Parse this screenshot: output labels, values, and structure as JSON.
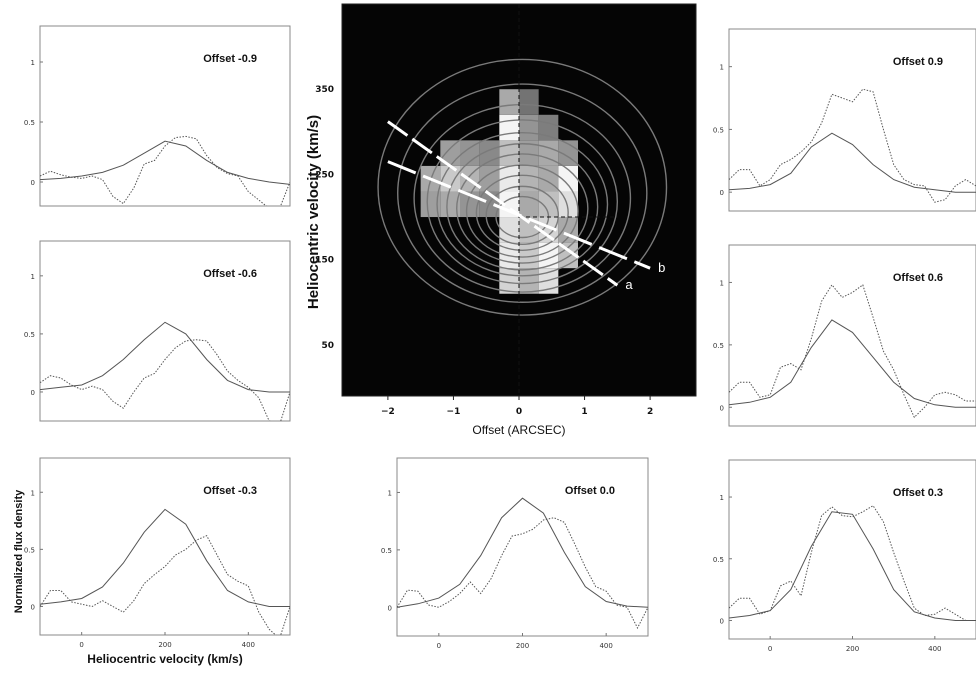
{
  "colors": {
    "panel_frame": "#888888",
    "line": "#555555",
    "map_background": "#050505",
    "overlay": "#ffffff"
  },
  "chart_data": [
    {
      "type": "heatmap",
      "xlabel": "Offset  (ARCSEC)",
      "ylabel": "Heliocentric velocity (km/s)",
      "xlim": [
        -2.7,
        2.7
      ],
      "ylim": [
        450,
        -10
      ],
      "x_ticks": [
        -2,
        -1,
        0,
        1,
        2
      ],
      "y_ticks": [
        50,
        150,
        250,
        350
      ],
      "x_tick_labels": [
        "−2",
        "−1",
        "0",
        "1",
        "2"
      ],
      "y_tick_labels": [
        "50",
        "150",
        "250",
        "350"
      ],
      "cells": [
        {
          "x": -0.15,
          "y": 125,
          "v": 0.8
        },
        {
          "x": 0.15,
          "y": 125,
          "v": 0.65
        },
        {
          "x": 0.45,
          "y": 125,
          "v": 0.85
        },
        {
          "x": -0.15,
          "y": 155,
          "v": 0.9
        },
        {
          "x": 0.15,
          "y": 155,
          "v": 0.75
        },
        {
          "x": 0.45,
          "y": 155,
          "v": 0.95
        },
        {
          "x": 0.75,
          "y": 155,
          "v": 0.7
        },
        {
          "x": -0.15,
          "y": 185,
          "v": 0.85
        },
        {
          "x": 0.15,
          "y": 185,
          "v": 0.7
        },
        {
          "x": 0.45,
          "y": 185,
          "v": 0.8
        },
        {
          "x": 0.75,
          "y": 185,
          "v": 0.6
        },
        {
          "x": -1.35,
          "y": 215,
          "v": 0.55
        },
        {
          "x": -1.05,
          "y": 215,
          "v": 0.6
        },
        {
          "x": -0.75,
          "y": 215,
          "v": 0.5
        },
        {
          "x": -0.45,
          "y": 215,
          "v": 0.45
        },
        {
          "x": -0.15,
          "y": 215,
          "v": 0.95
        },
        {
          "x": 0.15,
          "y": 215,
          "v": 0.6
        },
        {
          "x": 0.45,
          "y": 215,
          "v": 0.7
        },
        {
          "x": 0.75,
          "y": 215,
          "v": 0.85
        },
        {
          "x": -1.35,
          "y": 245,
          "v": 0.6
        },
        {
          "x": -1.05,
          "y": 245,
          "v": 0.75
        },
        {
          "x": -0.75,
          "y": 245,
          "v": 0.65
        },
        {
          "x": -0.45,
          "y": 245,
          "v": 0.55
        },
        {
          "x": -0.15,
          "y": 245,
          "v": 0.9
        },
        {
          "x": 0.15,
          "y": 245,
          "v": 0.65
        },
        {
          "x": 0.45,
          "y": 245,
          "v": 0.6
        },
        {
          "x": 0.75,
          "y": 245,
          "v": 0.95
        },
        {
          "x": -1.05,
          "y": 275,
          "v": 0.55
        },
        {
          "x": -0.75,
          "y": 275,
          "v": 0.5
        },
        {
          "x": -0.45,
          "y": 275,
          "v": 0.45
        },
        {
          "x": -0.15,
          "y": 275,
          "v": 0.7
        },
        {
          "x": 0.15,
          "y": 275,
          "v": 0.55
        },
        {
          "x": 0.45,
          "y": 275,
          "v": 0.6
        },
        {
          "x": 0.75,
          "y": 275,
          "v": 0.5
        },
        {
          "x": -0.15,
          "y": 305,
          "v": 0.95
        },
        {
          "x": 0.15,
          "y": 305,
          "v": 0.5
        },
        {
          "x": 0.45,
          "y": 305,
          "v": 0.4
        },
        {
          "x": -0.15,
          "y": 335,
          "v": 0.6
        },
        {
          "x": 0.15,
          "y": 335,
          "v": 0.35
        }
      ],
      "contours": [
        {
          "x0": 0.05,
          "y0": 235,
          "rx": 2.2,
          "ry": 150
        },
        {
          "x0": 0.05,
          "y0": 228,
          "rx": 1.9,
          "ry": 128
        },
        {
          "x0": 0.05,
          "y0": 222,
          "rx": 1.65,
          "ry": 110
        },
        {
          "x0": 0.05,
          "y0": 218,
          "rx": 1.45,
          "ry": 96
        },
        {
          "x0": 0.05,
          "y0": 215,
          "rx": 1.3,
          "ry": 84
        },
        {
          "x0": 0.05,
          "y0": 212,
          "rx": 1.15,
          "ry": 74
        },
        {
          "x0": 0.05,
          "y0": 210,
          "rx": 1.0,
          "ry": 64
        },
        {
          "x0": 0.05,
          "y0": 207,
          "rx": 0.85,
          "ry": 54
        },
        {
          "x0": 0.05,
          "y0": 205,
          "rx": 0.7,
          "ry": 44
        },
        {
          "x0": 0.05,
          "y0": 202,
          "rx": 0.55,
          "ry": 34
        },
        {
          "x0": 0.05,
          "y0": 200,
          "rx": 0.4,
          "ry": 24
        }
      ],
      "lines": [
        {
          "label": "a",
          "x": [
            -2.0,
            1.5
          ],
          "y": [
            312,
            120
          ]
        },
        {
          "label": "b",
          "x": [
            -2.0,
            2.0
          ],
          "y": [
            265,
            140
          ]
        }
      ]
    },
    {
      "type": "line",
      "title": "Offset -0.9",
      "xlabel": "",
      "ylabel": "",
      "xlim": [
        -100,
        500
      ],
      "ylim": [
        -0.2,
        1.3
      ],
      "x_ticks": [],
      "y_ticks": [
        0,
        0.5,
        1
      ],
      "y_tick_labels": [
        "0",
        "0.5",
        "1"
      ],
      "series": [
        {
          "style": "solid",
          "x": [
            -100,
            -50,
            0,
            50,
            100,
            150,
            200,
            250,
            300,
            350,
            400,
            450,
            500
          ],
          "y": [
            0.02,
            0.03,
            0.05,
            0.08,
            0.14,
            0.24,
            0.34,
            0.3,
            0.18,
            0.08,
            0.03,
            0.0,
            -0.02
          ]
        },
        {
          "style": "dotted",
          "x": [
            -100,
            -75,
            -50,
            -25,
            0,
            25,
            50,
            75,
            100,
            125,
            150,
            175,
            200,
            225,
            250,
            275,
            300,
            325,
            350,
            375,
            400,
            425,
            450,
            475,
            500
          ],
          "y": [
            0.05,
            0.09,
            0.06,
            0.04,
            0.03,
            0.05,
            0.02,
            -0.12,
            -0.18,
            -0.05,
            0.15,
            0.18,
            0.3,
            0.37,
            0.38,
            0.36,
            0.22,
            0.12,
            0.07,
            0.05,
            -0.08,
            -0.15,
            -0.22,
            -0.22,
            0.0
          ]
        }
      ]
    },
    {
      "type": "line",
      "title": "Offset -0.6",
      "xlabel": "",
      "ylabel": "",
      "xlim": [
        -100,
        500
      ],
      "ylim": [
        -0.25,
        1.3
      ],
      "x_ticks": [],
      "y_ticks": [
        0,
        0.5,
        1
      ],
      "y_tick_labels": [
        "0",
        "0.5",
        "1"
      ],
      "series": [
        {
          "style": "solid",
          "x": [
            -100,
            -50,
            0,
            50,
            100,
            150,
            200,
            250,
            300,
            350,
            400,
            450,
            500
          ],
          "y": [
            0.02,
            0.04,
            0.06,
            0.14,
            0.28,
            0.45,
            0.6,
            0.5,
            0.28,
            0.1,
            0.02,
            0.0,
            0.0
          ]
        },
        {
          "style": "dotted",
          "x": [
            -100,
            -75,
            -50,
            -25,
            0,
            25,
            50,
            75,
            100,
            125,
            150,
            175,
            200,
            225,
            250,
            275,
            300,
            325,
            350,
            375,
            400,
            425,
            450,
            475,
            500
          ],
          "y": [
            0.08,
            0.14,
            0.12,
            0.06,
            0.02,
            0.05,
            0.02,
            -0.08,
            -0.14,
            0.0,
            0.12,
            0.16,
            0.28,
            0.38,
            0.44,
            0.45,
            0.44,
            0.32,
            0.18,
            0.1,
            0.04,
            -0.05,
            -0.25,
            -0.28,
            0.0
          ]
        }
      ]
    },
    {
      "type": "line",
      "title": "Offset -0.3",
      "xlabel": "Heliocentric velocity (km/s)",
      "ylabel": "Normalized flux density",
      "xlim": [
        -100,
        500
      ],
      "ylim": [
        -0.25,
        1.3
      ],
      "x_ticks": [
        0,
        200,
        400
      ],
      "x_tick_labels": [
        "0",
        "200",
        "400"
      ],
      "y_ticks": [
        0,
        0.5,
        1
      ],
      "y_tick_labels": [
        "0",
        "0.5",
        "1"
      ],
      "series": [
        {
          "style": "solid",
          "x": [
            -100,
            -50,
            0,
            50,
            100,
            150,
            200,
            250,
            300,
            350,
            400,
            450,
            500
          ],
          "y": [
            0.02,
            0.04,
            0.07,
            0.17,
            0.38,
            0.65,
            0.85,
            0.72,
            0.4,
            0.14,
            0.04,
            0.0,
            0.0
          ]
        },
        {
          "style": "dotted",
          "x": [
            -100,
            -75,
            -50,
            -25,
            0,
            25,
            50,
            75,
            100,
            125,
            150,
            175,
            200,
            225,
            250,
            275,
            300,
            325,
            350,
            375,
            400,
            425,
            450,
            475,
            500
          ],
          "y": [
            0.0,
            0.14,
            0.14,
            0.04,
            0.02,
            0.0,
            0.05,
            0.0,
            -0.05,
            0.05,
            0.2,
            0.28,
            0.35,
            0.45,
            0.5,
            0.58,
            0.62,
            0.45,
            0.28,
            0.22,
            0.18,
            -0.05,
            -0.2,
            -0.28,
            0.0
          ]
        }
      ]
    },
    {
      "type": "line",
      "title": "Offset 0.0",
      "xlabel": "",
      "ylabel": "",
      "xlim": [
        -100,
        500
      ],
      "ylim": [
        -0.25,
        1.3
      ],
      "x_ticks": [
        0,
        200,
        400
      ],
      "x_tick_labels": [
        "0",
        "200",
        "400"
      ],
      "y_ticks": [
        0,
        0.5,
        1
      ],
      "y_tick_labels": [
        "0",
        "0.5",
        "1"
      ],
      "series": [
        {
          "style": "solid",
          "x": [
            -100,
            -50,
            0,
            50,
            100,
            150,
            200,
            250,
            300,
            350,
            400,
            450,
            500
          ],
          "y": [
            0.0,
            0.03,
            0.08,
            0.2,
            0.45,
            0.78,
            0.95,
            0.82,
            0.48,
            0.18,
            0.05,
            0.01,
            0.0
          ]
        },
        {
          "style": "dotted",
          "x": [
            -100,
            -75,
            -50,
            -25,
            0,
            25,
            50,
            75,
            100,
            125,
            150,
            175,
            200,
            225,
            250,
            275,
            300,
            325,
            350,
            375,
            400,
            425,
            450,
            475,
            500
          ],
          "y": [
            0.0,
            0.15,
            0.14,
            0.02,
            0.0,
            0.05,
            0.12,
            0.22,
            0.12,
            0.25,
            0.45,
            0.62,
            0.64,
            0.68,
            0.76,
            0.78,
            0.74,
            0.55,
            0.35,
            0.18,
            0.14,
            0.02,
            0.0,
            -0.18,
            0.0
          ]
        }
      ]
    },
    {
      "type": "line",
      "title": "Offset 0.9",
      "xlabel": "",
      "ylabel": "",
      "xlim": [
        -100,
        500
      ],
      "ylim": [
        -0.15,
        1.3
      ],
      "x_ticks": [],
      "y_ticks": [
        0,
        0.5,
        1
      ],
      "y_tick_labels": [
        "0",
        "0.5",
        "1"
      ],
      "series": [
        {
          "style": "solid",
          "x": [
            -100,
            -50,
            0,
            50,
            100,
            150,
            200,
            250,
            300,
            350,
            400,
            450,
            500
          ],
          "y": [
            0.02,
            0.03,
            0.06,
            0.15,
            0.36,
            0.47,
            0.38,
            0.22,
            0.1,
            0.04,
            0.02,
            0.0,
            0.0
          ]
        },
        {
          "style": "dotted",
          "x": [
            -100,
            -75,
            -50,
            -25,
            0,
            25,
            50,
            75,
            100,
            125,
            150,
            175,
            200,
            225,
            250,
            275,
            300,
            325,
            350,
            375,
            400,
            425,
            450,
            475,
            500
          ],
          "y": [
            0.1,
            0.18,
            0.18,
            0.05,
            0.1,
            0.22,
            0.26,
            0.32,
            0.4,
            0.55,
            0.78,
            0.75,
            0.72,
            0.82,
            0.8,
            0.5,
            0.22,
            0.1,
            0.06,
            0.05,
            -0.08,
            -0.06,
            0.05,
            0.1,
            0.05
          ]
        }
      ]
    },
    {
      "type": "line",
      "title": "Offset 0.6",
      "xlabel": "",
      "ylabel": "",
      "xlim": [
        -100,
        500
      ],
      "ylim": [
        -0.15,
        1.3
      ],
      "x_ticks": [],
      "y_ticks": [
        0,
        0.5,
        1
      ],
      "y_tick_labels": [
        "0",
        "0.5",
        "1"
      ],
      "series": [
        {
          "style": "solid",
          "x": [
            -100,
            -50,
            0,
            50,
            100,
            150,
            200,
            250,
            300,
            350,
            400,
            450,
            500
          ],
          "y": [
            0.02,
            0.04,
            0.08,
            0.2,
            0.48,
            0.7,
            0.6,
            0.4,
            0.2,
            0.07,
            0.02,
            0.0,
            0.0
          ]
        },
        {
          "style": "dotted",
          "x": [
            -100,
            -75,
            -50,
            -25,
            0,
            25,
            50,
            75,
            100,
            125,
            150,
            175,
            200,
            225,
            250,
            275,
            300,
            325,
            350,
            375,
            400,
            425,
            450,
            475,
            500
          ],
          "y": [
            0.12,
            0.2,
            0.2,
            0.08,
            0.1,
            0.32,
            0.35,
            0.3,
            0.55,
            0.85,
            0.98,
            0.88,
            0.92,
            0.98,
            0.72,
            0.45,
            0.3,
            0.1,
            -0.08,
            0.0,
            0.1,
            0.12,
            0.1,
            0.05,
            0.05
          ]
        }
      ]
    },
    {
      "type": "line",
      "title": "Offset 0.3",
      "xlabel": "",
      "ylabel": "",
      "xlim": [
        -100,
        500
      ],
      "ylim": [
        -0.15,
        1.3
      ],
      "x_ticks": [
        0,
        200,
        400
      ],
      "x_tick_labels": [
        "0",
        "200",
        "400"
      ],
      "y_ticks": [
        0,
        0.5,
        1
      ],
      "y_tick_labels": [
        "0",
        "0.5",
        "1"
      ],
      "series": [
        {
          "style": "solid",
          "x": [
            -100,
            -50,
            0,
            50,
            100,
            150,
            200,
            250,
            300,
            350,
            400,
            450,
            500
          ],
          "y": [
            0.02,
            0.04,
            0.08,
            0.25,
            0.6,
            0.88,
            0.86,
            0.58,
            0.25,
            0.07,
            0.02,
            0.0,
            0.0
          ]
        },
        {
          "style": "dotted",
          "x": [
            -100,
            -75,
            -50,
            -25,
            0,
            25,
            50,
            75,
            100,
            125,
            150,
            175,
            200,
            225,
            250,
            275,
            300,
            325,
            350,
            375,
            400,
            425,
            450,
            475,
            500
          ],
          "y": [
            0.1,
            0.18,
            0.18,
            0.05,
            0.08,
            0.28,
            0.32,
            0.2,
            0.55,
            0.85,
            0.92,
            0.85,
            0.84,
            0.88,
            0.93,
            0.8,
            0.55,
            0.32,
            0.1,
            0.04,
            0.05,
            0.1,
            0.05,
            0.0,
            0.0
          ]
        }
      ]
    }
  ]
}
